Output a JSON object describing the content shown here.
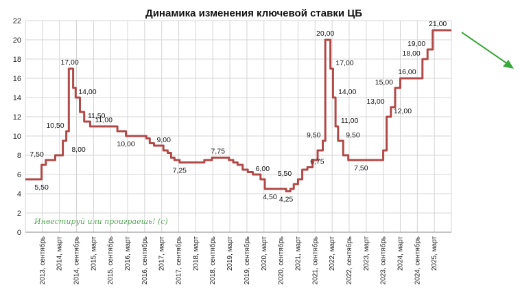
{
  "chart_data": {
    "type": "line",
    "title": "Динамика изменения ключевой ставки ЦБ",
    "xlabel": "",
    "ylabel": "",
    "ylim": [
      0,
      22
    ],
    "yticks": [
      0,
      2,
      4,
      6,
      8,
      10,
      12,
      14,
      16,
      18,
      20,
      22
    ],
    "grid": true,
    "legend": "none",
    "categories": [
      "2013, сентябрь",
      "2014, март",
      "2014, сентябрь",
      "2015, март",
      "2015, сентябрь",
      "2016, март",
      "2016, сентябрь",
      "2017, март",
      "2017, сентябрь",
      "2018, март",
      "2018, сентябрь",
      "2019, март",
      "2019, сентябрь",
      "2020, март",
      "2020, сентябрь",
      "2021, март",
      "2021, сентябрь",
      "2022, март",
      "2022, сентябрь",
      "2023, март",
      "2023, сентябрь",
      "2024, март",
      "2024, сентябрь",
      "2025, март"
    ],
    "series": [
      {
        "name": "",
        "color": "#b04a48",
        "points": [
          [
            0,
            5.5
          ],
          [
            0.95,
            5.5
          ],
          [
            0.95,
            7.0
          ],
          [
            1.2,
            7.0
          ],
          [
            1.2,
            7.5
          ],
          [
            1.75,
            7.5
          ],
          [
            1.75,
            8.0
          ],
          [
            2.2,
            8.0
          ],
          [
            2.2,
            9.5
          ],
          [
            2.4,
            9.5
          ],
          [
            2.4,
            10.5
          ],
          [
            2.55,
            10.5
          ],
          [
            2.55,
            17.0
          ],
          [
            2.8,
            17.0
          ],
          [
            2.8,
            15.0
          ],
          [
            2.95,
            15.0
          ],
          [
            2.95,
            14.0
          ],
          [
            3.2,
            14.0
          ],
          [
            3.2,
            12.5
          ],
          [
            3.45,
            12.5
          ],
          [
            3.45,
            11.5
          ],
          [
            3.8,
            11.5
          ],
          [
            3.8,
            11.0
          ],
          [
            5.4,
            11.0
          ],
          [
            5.4,
            10.5
          ],
          [
            5.9,
            10.5
          ],
          [
            5.9,
            10.0
          ],
          [
            7.1,
            10.0
          ],
          [
            7.1,
            9.75
          ],
          [
            7.3,
            9.75
          ],
          [
            7.3,
            9.25
          ],
          [
            7.55,
            9.25
          ],
          [
            7.55,
            9.0
          ],
          [
            8.1,
            9.0
          ],
          [
            8.1,
            8.5
          ],
          [
            8.35,
            8.5
          ],
          [
            8.35,
            8.25
          ],
          [
            8.55,
            8.25
          ],
          [
            8.55,
            7.75
          ],
          [
            8.75,
            7.75
          ],
          [
            8.75,
            7.5
          ],
          [
            9.05,
            7.5
          ],
          [
            9.05,
            7.25
          ],
          [
            10.5,
            7.25
          ],
          [
            10.5,
            7.5
          ],
          [
            10.95,
            7.5
          ],
          [
            10.95,
            7.75
          ],
          [
            11.95,
            7.75
          ],
          [
            11.95,
            7.5
          ],
          [
            12.2,
            7.5
          ],
          [
            12.2,
            7.25
          ],
          [
            12.45,
            7.25
          ],
          [
            12.45,
            7.0
          ],
          [
            12.75,
            7.0
          ],
          [
            12.75,
            6.5
          ],
          [
            13.05,
            6.5
          ],
          [
            13.05,
            6.25
          ],
          [
            13.35,
            6.25
          ],
          [
            13.35,
            6.0
          ],
          [
            13.8,
            6.0
          ],
          [
            13.8,
            5.5
          ],
          [
            14.05,
            5.5
          ],
          [
            14.05,
            4.5
          ],
          [
            15.3,
            4.5
          ],
          [
            15.3,
            4.25
          ],
          [
            15.55,
            4.25
          ],
          [
            15.55,
            4.5
          ],
          [
            15.75,
            4.5
          ],
          [
            15.75,
            5.0
          ],
          [
            16.0,
            5.0
          ],
          [
            16.0,
            5.5
          ],
          [
            16.25,
            5.5
          ],
          [
            16.25,
            6.5
          ],
          [
            16.55,
            6.5
          ],
          [
            16.55,
            6.75
          ],
          [
            16.85,
            6.75
          ],
          [
            16.85,
            7.5
          ],
          [
            17.15,
            7.5
          ],
          [
            17.15,
            8.5
          ],
          [
            17.45,
            8.5
          ],
          [
            17.45,
            9.5
          ],
          [
            17.6,
            9.5
          ],
          [
            17.6,
            20.0
          ],
          [
            17.9,
            20.0
          ],
          [
            17.9,
            17.0
          ],
          [
            18.05,
            17.0
          ],
          [
            18.05,
            14.0
          ],
          [
            18.2,
            14.0
          ],
          [
            18.2,
            11.0
          ],
          [
            18.35,
            11.0
          ],
          [
            18.35,
            9.5
          ],
          [
            18.65,
            9.5
          ],
          [
            18.65,
            8.0
          ],
          [
            18.95,
            8.0
          ],
          [
            18.95,
            7.5
          ],
          [
            21.0,
            7.5
          ],
          [
            21.0,
            8.5
          ],
          [
            21.2,
            8.5
          ],
          [
            21.2,
            12.0
          ],
          [
            21.45,
            12.0
          ],
          [
            21.45,
            13.0
          ],
          [
            21.7,
            13.0
          ],
          [
            21.7,
            15.0
          ],
          [
            22.0,
            15.0
          ],
          [
            22.0,
            16.0
          ],
          [
            23.3,
            16.0
          ],
          [
            23.3,
            18.0
          ],
          [
            23.6,
            18.0
          ],
          [
            23.6,
            19.0
          ],
          [
            23.9,
            19.0
          ],
          [
            23.9,
            21.0
          ],
          [
            25.0,
            21.0
          ]
        ]
      }
    ],
    "data_labels": [
      {
        "text": "5,50",
        "x": 0.95,
        "y": 5.5,
        "pos": "below"
      },
      {
        "text": "7,50",
        "x": 1.2,
        "y": 7.5,
        "pos": "left"
      },
      {
        "text": "10,50",
        "x": 2.4,
        "y": 10.5,
        "pos": "left"
      },
      {
        "text": "8,00",
        "x": 2.55,
        "y": 8.0,
        "pos": "right"
      },
      {
        "text": "17,00",
        "x": 2.6,
        "y": 17.0,
        "pos": "above"
      },
      {
        "text": "14,00",
        "x": 2.95,
        "y": 14.0,
        "pos": "right"
      },
      {
        "text": "11,50",
        "x": 3.5,
        "y": 11.5,
        "pos": "right"
      },
      {
        "text": "11,00",
        "x": 4.6,
        "y": 11.0,
        "pos": "above"
      },
      {
        "text": "10,00",
        "x": 5.9,
        "y": 10.0,
        "pos": "below"
      },
      {
        "text": "9,00",
        "x": 7.55,
        "y": 9.0,
        "pos": "right"
      },
      {
        "text": "7,25",
        "x": 9.05,
        "y": 7.25,
        "pos": "below"
      },
      {
        "text": "7,75",
        "x": 11.3,
        "y": 7.75,
        "pos": "above"
      },
      {
        "text": "6,00",
        "x": 13.35,
        "y": 6.0,
        "pos": "right"
      },
      {
        "text": "4,50",
        "x": 14.35,
        "y": 4.5,
        "pos": "below"
      },
      {
        "text": "4,25",
        "x": 15.3,
        "y": 4.25,
        "pos": "below"
      },
      {
        "text": "5,50",
        "x": 15.75,
        "y": 5.5,
        "pos": "left"
      },
      {
        "text": "6,75",
        "x": 16.55,
        "y": 6.75,
        "pos": "right"
      },
      {
        "text": "9,50",
        "x": 17.45,
        "y": 9.5,
        "pos": "left"
      },
      {
        "text": "20,00",
        "x": 17.6,
        "y": 20.0,
        "pos": "above"
      },
      {
        "text": "17,00",
        "x": 18.05,
        "y": 17.0,
        "pos": "right"
      },
      {
        "text": "14,00",
        "x": 18.2,
        "y": 14.0,
        "pos": "right"
      },
      {
        "text": "11,00",
        "x": 18.35,
        "y": 11.0,
        "pos": "right"
      },
      {
        "text": "9,50",
        "x": 18.65,
        "y": 9.5,
        "pos": "right"
      },
      {
        "text": "7,50",
        "x": 19.7,
        "y": 7.5,
        "pos": "below"
      },
      {
        "text": "13,00",
        "x": 21.2,
        "y": 13.0,
        "pos": "left"
      },
      {
        "text": "12,00",
        "x": 21.45,
        "y": 12.0,
        "pos": "right"
      },
      {
        "text": "15,00",
        "x": 21.7,
        "y": 15.0,
        "pos": "left"
      },
      {
        "text": "16,00",
        "x": 22.4,
        "y": 16.0,
        "pos": "above"
      },
      {
        "text": "18,00",
        "x": 23.3,
        "y": 18.0,
        "pos": "left"
      },
      {
        "text": "19,00",
        "x": 23.6,
        "y": 19.0,
        "pos": "left"
      },
      {
        "text": "21,00",
        "x": 24.2,
        "y": 21.0,
        "pos": "above"
      }
    ],
    "annotation": "Инвестируй или проиграешь! (с)",
    "arrow_color": "#3aa83a"
  }
}
